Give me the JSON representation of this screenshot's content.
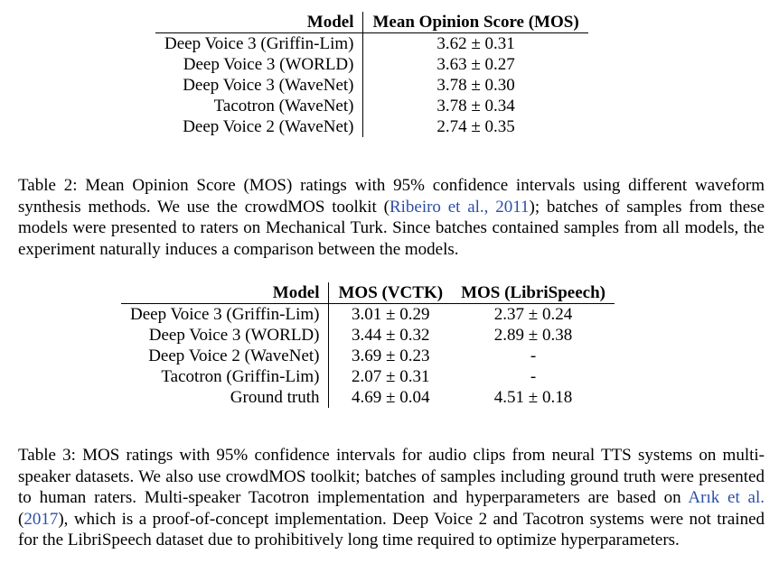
{
  "table2": {
    "headers": [
      "Model",
      "Mean Opinion Score (MOS)"
    ],
    "rows": [
      [
        "Deep Voice 3 (Griffin-Lim)",
        "3.62 ± 0.31"
      ],
      [
        "Deep Voice 3 (WORLD)",
        "3.63 ± 0.27"
      ],
      [
        "Deep Voice 3 (WaveNet)",
        "3.78 ± 0.30"
      ],
      [
        "Tacotron (WaveNet)",
        "3.78 ± 0.34"
      ],
      [
        "Deep Voice 2 (WaveNet)",
        "2.74 ± 0.35"
      ]
    ],
    "caption": {
      "text1": "Table 2: Mean Opinion Score (MOS) ratings with 95% confidence intervals using different waveform synthesis methods. We use the crowdMOS toolkit (",
      "cite_author": "Ribeiro et al.",
      "cite_sep": ", ",
      "cite_year": "2011",
      "text2": "); batches of samples from these models were presented to raters on Mechanical Turk. Since batches contained samples from all models, the experiment naturally induces a comparison between the models."
    }
  },
  "table3": {
    "headers": [
      "Model",
      "MOS (VCTK)",
      "MOS (LibriSpeech)"
    ],
    "rows": [
      [
        "Deep Voice 3 (Griffin-Lim)",
        "3.01 ± 0.29",
        "2.37 ± 0.24"
      ],
      [
        "Deep Voice 3 (WORLD)",
        "3.44 ± 0.32",
        "2.89 ± 0.38"
      ],
      [
        "Deep Voice 2 (WaveNet)",
        "3.69 ± 0.23",
        "-"
      ],
      [
        "Tacotron (Griffin-Lim)",
        "2.07 ± 0.31",
        "-"
      ],
      [
        "Ground truth",
        "4.69 ± 0.04",
        "4.51 ± 0.18"
      ]
    ],
    "caption": {
      "text1": "Table 3: MOS ratings with 95% confidence intervals for audio clips from neural TTS systems on multi-speaker datasets. We also use crowdMOS toolkit; batches of samples including ground truth were presented to human raters. Multi-speaker Tacotron implementation and hyperparameters are based on ",
      "cite_author": "Arık et al.",
      "cite_open": " (",
      "cite_year": "2017",
      "text2": "), which is a proof-of-concept implementation. Deep Voice 2 and Tacotron systems were not trained for the LibriSpeech dataset due to prohibitively long time required to optimize hyperparameters."
    }
  }
}
